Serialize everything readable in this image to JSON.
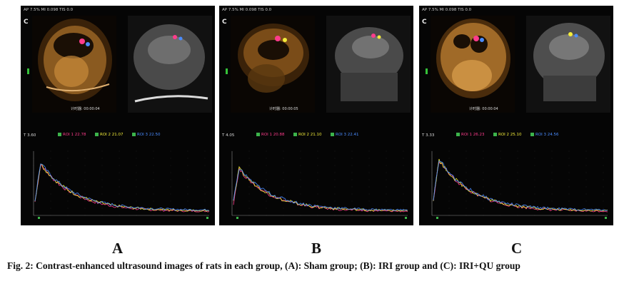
{
  "figure": {
    "caption": "Fig. 2: Contrast-enhanced ultrasound images of rats in each group, (A): Sham group; (B): IRI group and (C): IRI+QU group"
  },
  "panels": [
    {
      "id": "a",
      "label": "A",
      "header": "AP 7.5%  MI 0.098  TIS 0.0",
      "mode_ceus": "C",
      "mode_bmode": "T",
      "timer": "计时器: 00:00:04",
      "tic_t": "T 3.60",
      "roi1": "ROI 1  22.78",
      "roi2": "ROI 2  21.07",
      "roi3": "ROI 3  22.50"
    },
    {
      "id": "b",
      "label": "B",
      "header": "AP 7.5%  MI 0.098  TIS 0.0",
      "mode_ceus": "C",
      "mode_bmode": "T",
      "timer": "计时器: 00:00:05",
      "tic_t": "T 4.05",
      "roi1": "ROI 1  20.88",
      "roi2": "ROI 2  21.10",
      "roi3": "ROI 3  22.41"
    },
    {
      "id": "c",
      "label": "C",
      "header": "AP 7.5%  MI 0.098  TIS 0.0",
      "mode_ceus": "C",
      "mode_bmode": "T",
      "timer": "计时器: 00:00:04",
      "tic_t": "T 3.33",
      "roi1": "ROI 1  26.23",
      "roi2": "ROI 2  25.10",
      "roi3": "ROI 3  24.56"
    }
  ],
  "colors": {
    "ceus_tint": "#c98a3a",
    "roi1": "#ff3c8c",
    "roi2": "#f4ee3a",
    "roi3": "#4a8cff",
    "roi_swatch": "#3cb44b"
  }
}
